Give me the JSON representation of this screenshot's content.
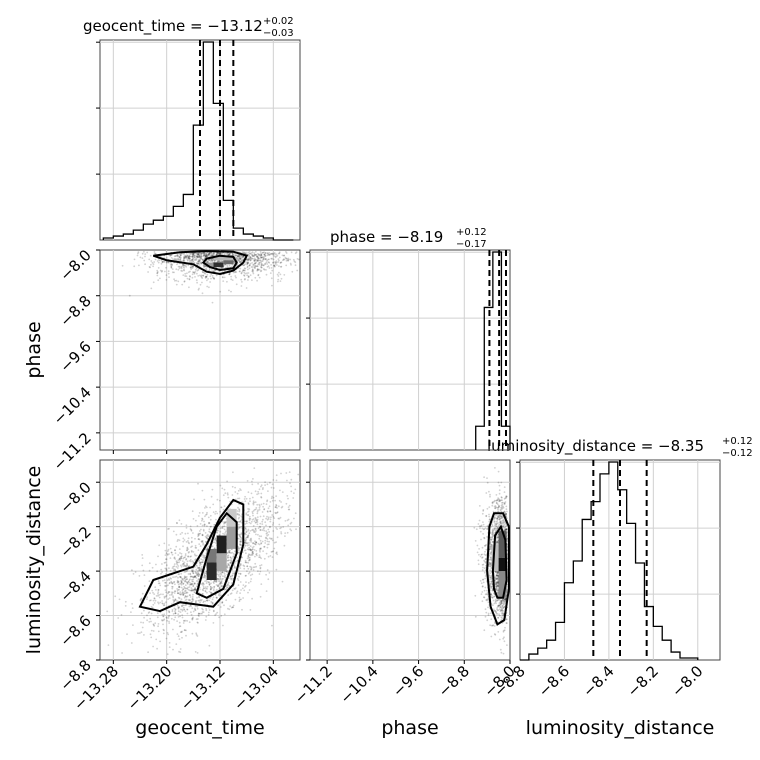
{
  "chart_data": {
    "type": "corner",
    "parameters": [
      "geocent_time",
      "phase",
      "luminosity_distance"
    ],
    "xlabels": [
      "geocent_time",
      "phase",
      "luminosity_distance"
    ],
    "ylabels": [
      "phase",
      "luminosity_distance"
    ],
    "titles": [
      {
        "param": "geocent_time",
        "text": "geocent_time = −13.12",
        "plus": "+0.02",
        "minus": "−0.03"
      },
      {
        "param": "phase",
        "text": "phase = −8.19",
        "plus": "+0.12",
        "minus": "−0.17"
      },
      {
        "param": "luminosity_distance",
        "text": "luminosity_distance = −8.35",
        "plus": "+0.12",
        "minus": "−0.12"
      }
    ],
    "ranges": {
      "geocent_time": [
        -13.3,
        -13.0
      ],
      "phase": [
        -11.5,
        -8.0
      ],
      "luminosity_distance": [
        -8.8,
        -7.9
      ]
    },
    "ticks": {
      "geocent_time": [
        "−13.28",
        "−13.20",
        "−13.12",
        "−13.04"
      ],
      "geocent_time_values": [
        -13.28,
        -13.2,
        -13.12,
        -13.04
      ],
      "phase": [
        "−11.2",
        "−10.4",
        "−9.6",
        "−8.8",
        "−8.0"
      ],
      "phase_values": [
        -11.2,
        -10.4,
        -9.6,
        -8.8,
        -8.0
      ],
      "luminosity_distance": [
        "−8.8",
        "−8.6",
        "−8.4",
        "−8.2",
        "−8.0"
      ],
      "luminosity_distance_values": [
        -8.8,
        -8.6,
        -8.4,
        -8.2,
        -8.0
      ]
    },
    "quantiles": {
      "geocent_time": [
        -13.15,
        -13.12,
        -13.1
      ],
      "phase": [
        -8.36,
        -8.19,
        -8.07
      ],
      "luminosity_distance": [
        -8.47,
        -8.35,
        -8.23
      ]
    },
    "hist_geocent_time": {
      "edges": [
        -13.295,
        -13.28,
        -13.265,
        -13.25,
        -13.235,
        -13.22,
        -13.205,
        -13.19,
        -13.175,
        -13.16,
        -13.145,
        -13.13,
        -13.115,
        -13.1,
        -13.085,
        -13.07,
        -13.055,
        -13.04,
        -13.025,
        -13.01
      ],
      "counts": [
        1,
        2,
        3,
        5,
        8,
        10,
        12,
        17,
        23,
        58,
        100,
        69,
        20,
        6,
        3,
        2,
        1,
        0,
        0
      ]
    },
    "hist_phase": {
      "edges": [
        -8.6,
        -8.45,
        -8.3,
        -8.15,
        -8.0
      ],
      "counts": [
        12,
        72,
        100,
        12
      ]
    },
    "hist_luminosity_distance": {
      "edges": [
        -8.8,
        -8.76,
        -8.72,
        -8.68,
        -8.64,
        -8.6,
        -8.56,
        -8.52,
        -8.48,
        -8.44,
        -8.4,
        -8.36,
        -8.32,
        -8.28,
        -8.24,
        -8.2,
        -8.16,
        -8.12,
        -8.08,
        -8.04,
        -8.0
      ],
      "counts": [
        0,
        3,
        6,
        10,
        19,
        39,
        50,
        71,
        80,
        94,
        100,
        86,
        69,
        49,
        27,
        17,
        10,
        4,
        1,
        1
      ]
    },
    "grid": true
  }
}
